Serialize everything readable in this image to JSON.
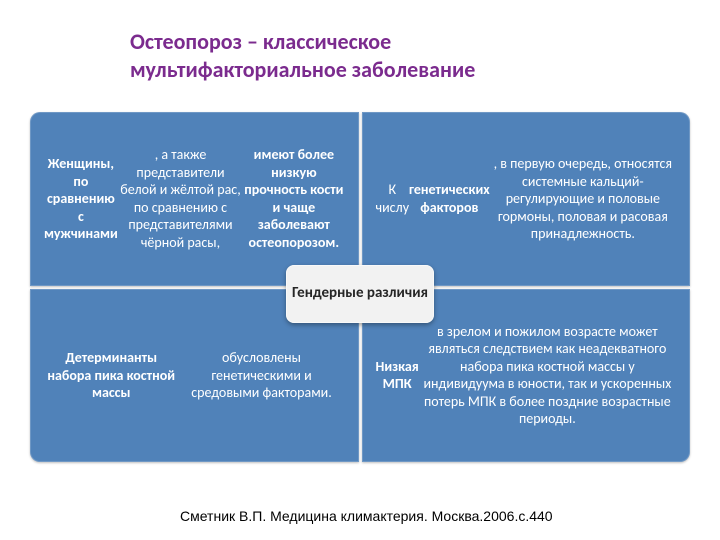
{
  "title": {
    "line1": "Остеопороз – классическое",
    "line2": "мультифакториальное заболевание",
    "color": "#7b2b8e",
    "fontsize": 22
  },
  "diagram": {
    "type": "infographic",
    "cell_bg": "#5082b9",
    "cell_text_color": "#ffffff",
    "cell_fontsize": 14,
    "grid_gap": 3,
    "center": {
      "text": "Гендерные различия",
      "bg": "#f2f2f2",
      "text_color": "#262626",
      "fontsize": 15
    },
    "cells": {
      "tl": {
        "html": "<b>Женщины, по сравнению с мужчинами</b>, а также представители белой и жёлтой рас, по сравнению с представителями чёрной расы, <b>имеют более низкую прочность кости и чаще заболевают остеопорозом.</b>"
      },
      "tr": {
        "html": "К числу <b>генетических факторов</b>, в первую очередь, относятся системные кальций-регулирующие и половые гормоны, половая и расовая принадлежность."
      },
      "bl": {
        "html": "<b>Детерминанты набора пика костной массы</b> обусловлены генетическими и средовыми факторами."
      },
      "br": {
        "html": "<b>Низкая МПК</b> в зрелом и пожилом возрасте может являться следствием как неадекватного набора пика костной массы у индивидуума в юности, так и ускоренных потерь МПК в более поздние возрастные периоды."
      }
    }
  },
  "citation": {
    "text": "Сметник  В.П. Медицина климактерия. Москва.2006.с.440",
    "color": "#000000",
    "fontsize": 14
  }
}
